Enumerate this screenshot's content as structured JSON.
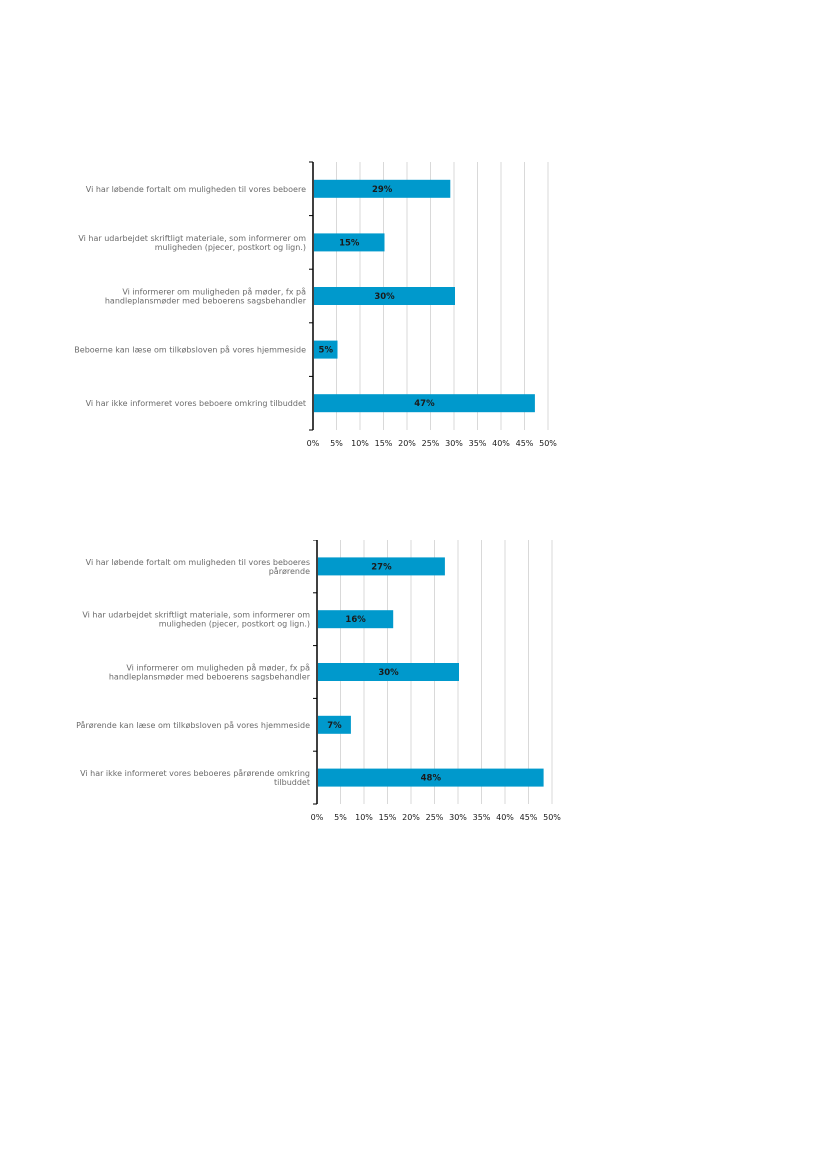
{
  "chart_data": [
    {
      "type": "bar",
      "orientation": "horizontal",
      "categories": [
        "Vi har løbende fortalt om muligheden til vores beboere",
        "Vi har udarbejdet skriftligt materiale, som informerer om muligheden (pjecer, postkort og lign.)",
        "Vi informerer om muligheden på møder, fx på handleplansmøder med beboerens sagsbehandler",
        "Beboerne kan læse om tilkøbsloven på vores hjemmeside",
        "Vi har ikke informeret vores beboere omkring tilbuddet"
      ],
      "values": [
        29,
        15,
        30,
        5,
        47
      ],
      "value_labels": [
        "29%",
        "15%",
        "30%",
        "5%",
        "47%"
      ],
      "xlim": [
        0,
        50
      ],
      "xticks": [
        "0%",
        "5%",
        "10%",
        "15%",
        "20%",
        "25%",
        "30%",
        "35%",
        "40%",
        "45%",
        "50%"
      ],
      "grid": true,
      "bar_color": "#0099cc"
    },
    {
      "type": "bar",
      "orientation": "horizontal",
      "categories": [
        "Vi har løbende fortalt om muligheden til vores beboeres pårørende",
        "Vi har udarbejdet skriftligt materiale, som informerer om muligheden (pjecer, postkort og lign.)",
        "Vi informerer om muligheden på møder, fx på handleplansmøder med beboerens sagsbehandler",
        "Pårørende kan læse om tilkøbsloven på vores hjemmeside",
        "Vi har ikke informeret vores beboeres pårørende omkring tilbuddet"
      ],
      "values": [
        27,
        16,
        30,
        7,
        48
      ],
      "value_labels": [
        "27%",
        "16%",
        "30%",
        "7%",
        "48%"
      ],
      "xlim": [
        0,
        50
      ],
      "xticks": [
        "0%",
        "5%",
        "10%",
        "15%",
        "20%",
        "25%",
        "30%",
        "35%",
        "40%",
        "45%",
        "50%"
      ],
      "grid": true,
      "bar_color": "#0099cc"
    }
  ]
}
